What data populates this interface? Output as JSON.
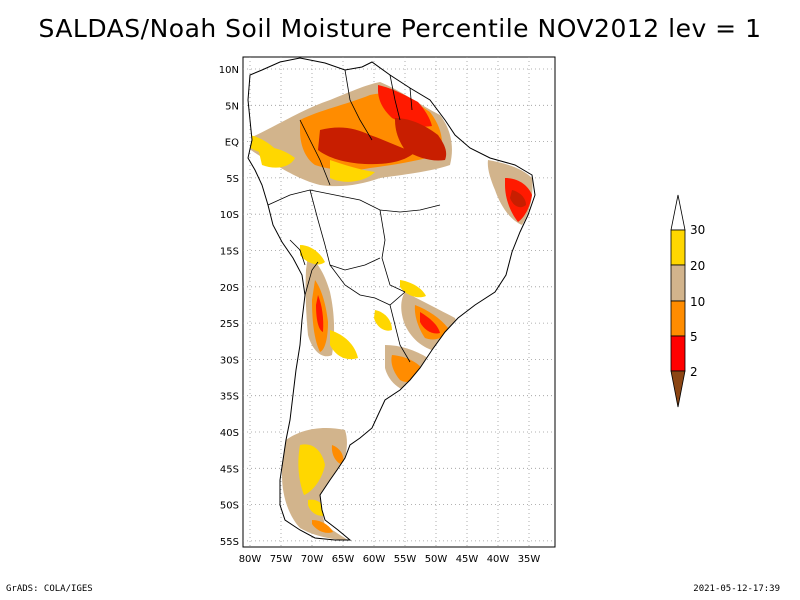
{
  "title": "SALDAS/Noah Soil Moisture Percentile NOV2012 lev = 1",
  "footer": {
    "left": "GrADS: COLA/IGES",
    "right": "2021-05-12-17:39"
  },
  "map": {
    "lon_ticks": [
      "80W",
      "75W",
      "70W",
      "65W",
      "60W",
      "55W",
      "50W",
      "45W",
      "40W",
      "35W"
    ],
    "lat_ticks": [
      "10N",
      "5N",
      "EQ",
      "5S",
      "10S",
      "15S",
      "20S",
      "25S",
      "30S",
      "35S",
      "40S",
      "45S",
      "50S",
      "55S"
    ],
    "gridlines": "dotted"
  },
  "colorbar": {
    "labels": [
      "30",
      "20",
      "10",
      "5",
      "2"
    ],
    "colors": {
      "above_30": "#ffffff",
      "20_30": "#ffd700",
      "10_20": "#d2b48c",
      "5_10": "#ff8c00",
      "2_5": "#ff0000",
      "below_2": "#8b4513"
    }
  },
  "palette": {
    "deep": "#c81e00",
    "red": "#ff1a00",
    "orange": "#ff8c00",
    "tan": "#d2b48c",
    "yellow": "#ffd700",
    "outline": "#000000"
  }
}
